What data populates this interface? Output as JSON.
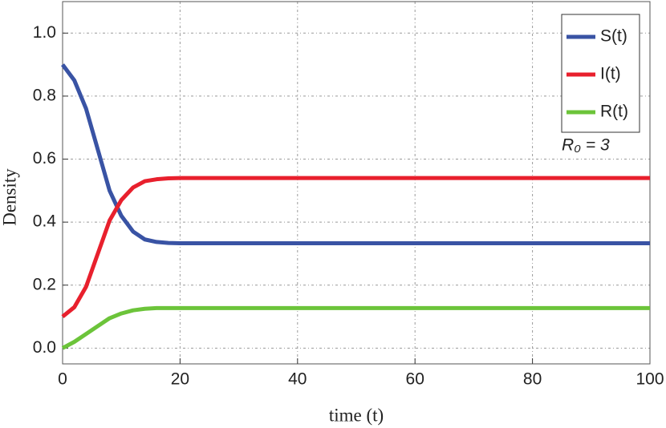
{
  "chart_data": {
    "type": "line",
    "xlabel": "time (t)",
    "ylabel": "Density",
    "annotation": "R₀ = 3",
    "x": [
      0,
      2,
      4,
      6,
      8,
      10,
      12,
      14,
      16,
      18,
      20,
      30,
      40,
      50,
      60,
      70,
      80,
      90,
      100
    ],
    "series": [
      {
        "name": "S(t)",
        "color": "#3953a4",
        "values": [
          0.9,
          0.85,
          0.76,
          0.63,
          0.5,
          0.42,
          0.37,
          0.345,
          0.337,
          0.334,
          0.333,
          0.333,
          0.333,
          0.333,
          0.333,
          0.333,
          0.333,
          0.333,
          0.333
        ]
      },
      {
        "name": "I(t)",
        "color": "#e8202d",
        "values": [
          0.1,
          0.13,
          0.195,
          0.3,
          0.405,
          0.47,
          0.51,
          0.53,
          0.536,
          0.539,
          0.54,
          0.54,
          0.54,
          0.54,
          0.54,
          0.54,
          0.54,
          0.54,
          0.54
        ]
      },
      {
        "name": "R(t)",
        "color": "#6cc43a",
        "values": [
          0,
          0.02,
          0.045,
          0.07,
          0.095,
          0.11,
          0.12,
          0.125,
          0.127,
          0.127,
          0.127,
          0.127,
          0.127,
          0.127,
          0.127,
          0.127,
          0.127,
          0.127,
          0.127
        ]
      }
    ],
    "xlim": [
      0,
      100
    ],
    "xticks": [
      0,
      20,
      40,
      60,
      80,
      100
    ],
    "ylim": [
      -0.05,
      1.1
    ],
    "yticks": [
      {
        "value": 0,
        "label": "0.0"
      },
      0.2,
      0.4,
      0.6,
      0.8,
      {
        "value": 1,
        "label": "1.0"
      }
    ],
    "grid": true
  }
}
